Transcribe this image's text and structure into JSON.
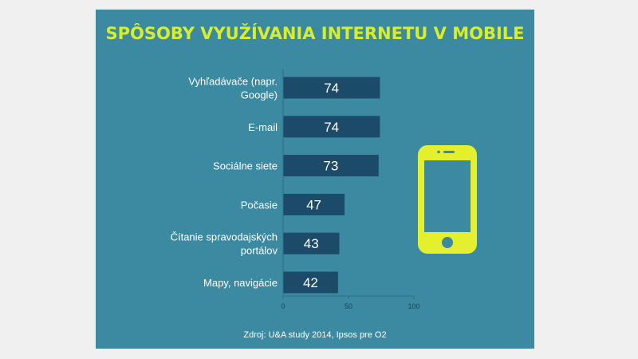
{
  "colors": {
    "background": "#3b8aa2",
    "bar": "#1b4b68",
    "title": "#d9ee2b",
    "text": "#ffffff",
    "phone": "#e4f02d"
  },
  "icons": [
    "smartphone-icon"
  ],
  "chart_data": {
    "type": "bar",
    "orientation": "horizontal",
    "title": "SPÔSOBY VYUŽÍVANIA INTERNETU V MOBILE",
    "categories": [
      [
        "Vyhľadávače (napr.",
        "Google)"
      ],
      [
        "E-mail"
      ],
      [
        "Sociálne siete"
      ],
      [
        "Počasie"
      ],
      [
        "Čítanie spravodajských",
        "portálov"
      ],
      [
        "Mapy, navigácie"
      ]
    ],
    "values": [
      74,
      74,
      73,
      47,
      43,
      42
    ],
    "xlim": [
      0,
      100
    ],
    "xticks": [
      0,
      50,
      100
    ],
    "grid": false,
    "data_labels": true
  },
  "source": "Zdroj: U&A study 2014, Ipsos pre O2"
}
